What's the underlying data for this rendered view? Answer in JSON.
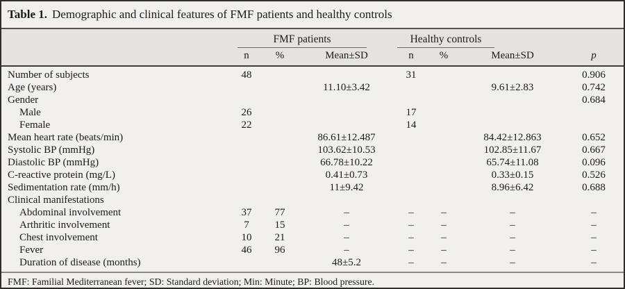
{
  "title": {
    "label": "Table 1.",
    "caption": "Demographic and clinical features of FMF patients and healthy controls"
  },
  "table": {
    "header": {
      "groups": [
        "FMF patients",
        "Healthy controls"
      ],
      "columns": [
        "n",
        "%",
        "Mean±SD",
        "n",
        "%",
        "Mean±SD",
        "p"
      ]
    },
    "rows": [
      {
        "label": "Number of subjects",
        "indent": false,
        "fmf_n": "48",
        "fmf_pct": "",
        "fmf_mean": "",
        "hc_n": "31",
        "hc_pct": "",
        "hc_mean": "",
        "p": "0.906"
      },
      {
        "label": "Age (years)",
        "indent": false,
        "fmf_n": "",
        "fmf_pct": "",
        "fmf_mean": "11.10±3.42",
        "hc_n": "",
        "hc_pct": "",
        "hc_mean": "9.61±2.83",
        "p": "0.742"
      },
      {
        "label": "Gender",
        "indent": false,
        "fmf_n": "",
        "fmf_pct": "",
        "fmf_mean": "",
        "hc_n": "",
        "hc_pct": "",
        "hc_mean": "",
        "p": "0.684"
      },
      {
        "label": "Male",
        "indent": true,
        "fmf_n": "26",
        "fmf_pct": "",
        "fmf_mean": "",
        "hc_n": "17",
        "hc_pct": "",
        "hc_mean": "",
        "p": ""
      },
      {
        "label": "Female",
        "indent": true,
        "fmf_n": "22",
        "fmf_pct": "",
        "fmf_mean": "",
        "hc_n": "14",
        "hc_pct": "",
        "hc_mean": "",
        "p": ""
      },
      {
        "label": "Mean heart rate (beats/min)",
        "indent": false,
        "fmf_n": "",
        "fmf_pct": "",
        "fmf_mean": "86.61±12.487",
        "hc_n": "",
        "hc_pct": "",
        "hc_mean": "84.42±12.863",
        "p": "0.652"
      },
      {
        "label": "Systolic BP (mmHg)",
        "indent": false,
        "fmf_n": "",
        "fmf_pct": "",
        "fmf_mean": "103.62±10.53",
        "hc_n": "",
        "hc_pct": "",
        "hc_mean": "102.85±11.67",
        "p": "0.667"
      },
      {
        "label": "Diastolic BP (mmHg)",
        "indent": false,
        "fmf_n": "",
        "fmf_pct": "",
        "fmf_mean": "66.78±10.22",
        "hc_n": "",
        "hc_pct": "",
        "hc_mean": "65.74±11.08",
        "p": "0.096"
      },
      {
        "label": "C-reactive protein (mg/L)",
        "indent": false,
        "fmf_n": "",
        "fmf_pct": "",
        "fmf_mean": "0.41±0.73",
        "hc_n": "",
        "hc_pct": "",
        "hc_mean": "0.33±0.15",
        "p": "0.526"
      },
      {
        "label": "Sedimentation rate (mm/h)",
        "indent": false,
        "fmf_n": "",
        "fmf_pct": "",
        "fmf_mean": "11±9.42",
        "hc_n": "",
        "hc_pct": "",
        "hc_mean": "8.96±6.42",
        "p": "0.688"
      },
      {
        "label": "Clinical manifestations",
        "indent": false,
        "fmf_n": "",
        "fmf_pct": "",
        "fmf_mean": "",
        "hc_n": "",
        "hc_pct": "",
        "hc_mean": "",
        "p": ""
      },
      {
        "label": "Abdominal involvement",
        "indent": true,
        "fmf_n": "37",
        "fmf_pct": "77",
        "fmf_mean": "–",
        "hc_n": "–",
        "hc_pct": "–",
        "hc_mean": "–",
        "p": "–"
      },
      {
        "label": "Arthritic involvement",
        "indent": true,
        "fmf_n": "7",
        "fmf_pct": "15",
        "fmf_mean": "–",
        "hc_n": "–",
        "hc_pct": "–",
        "hc_mean": "–",
        "p": "–"
      },
      {
        "label": "Chest involvement",
        "indent": true,
        "fmf_n": "10",
        "fmf_pct": "21",
        "fmf_mean": "–",
        "hc_n": "–",
        "hc_pct": "–",
        "hc_mean": "–",
        "p": "–"
      },
      {
        "label": "Fever",
        "indent": true,
        "fmf_n": "46",
        "fmf_pct": "96",
        "fmf_mean": "–",
        "hc_n": "–",
        "hc_pct": "–",
        "hc_mean": "–",
        "p": "–"
      },
      {
        "label": "Duration of disease (months)",
        "indent": true,
        "fmf_n": "",
        "fmf_pct": "",
        "fmf_mean": "48±5.2",
        "hc_n": "–",
        "hc_pct": "–",
        "hc_mean": "–",
        "p": "–"
      }
    ]
  },
  "footnote": "FMF: Familial Mediterranean fever; SD: Standard deviation; Min: Minute; BP: Blood pressure.",
  "colors": {
    "page_bg": "#f1f0ee",
    "header_band_bg": "#e4e3e0",
    "border": "#2e2d2b",
    "text": "#1b1b1b"
  }
}
